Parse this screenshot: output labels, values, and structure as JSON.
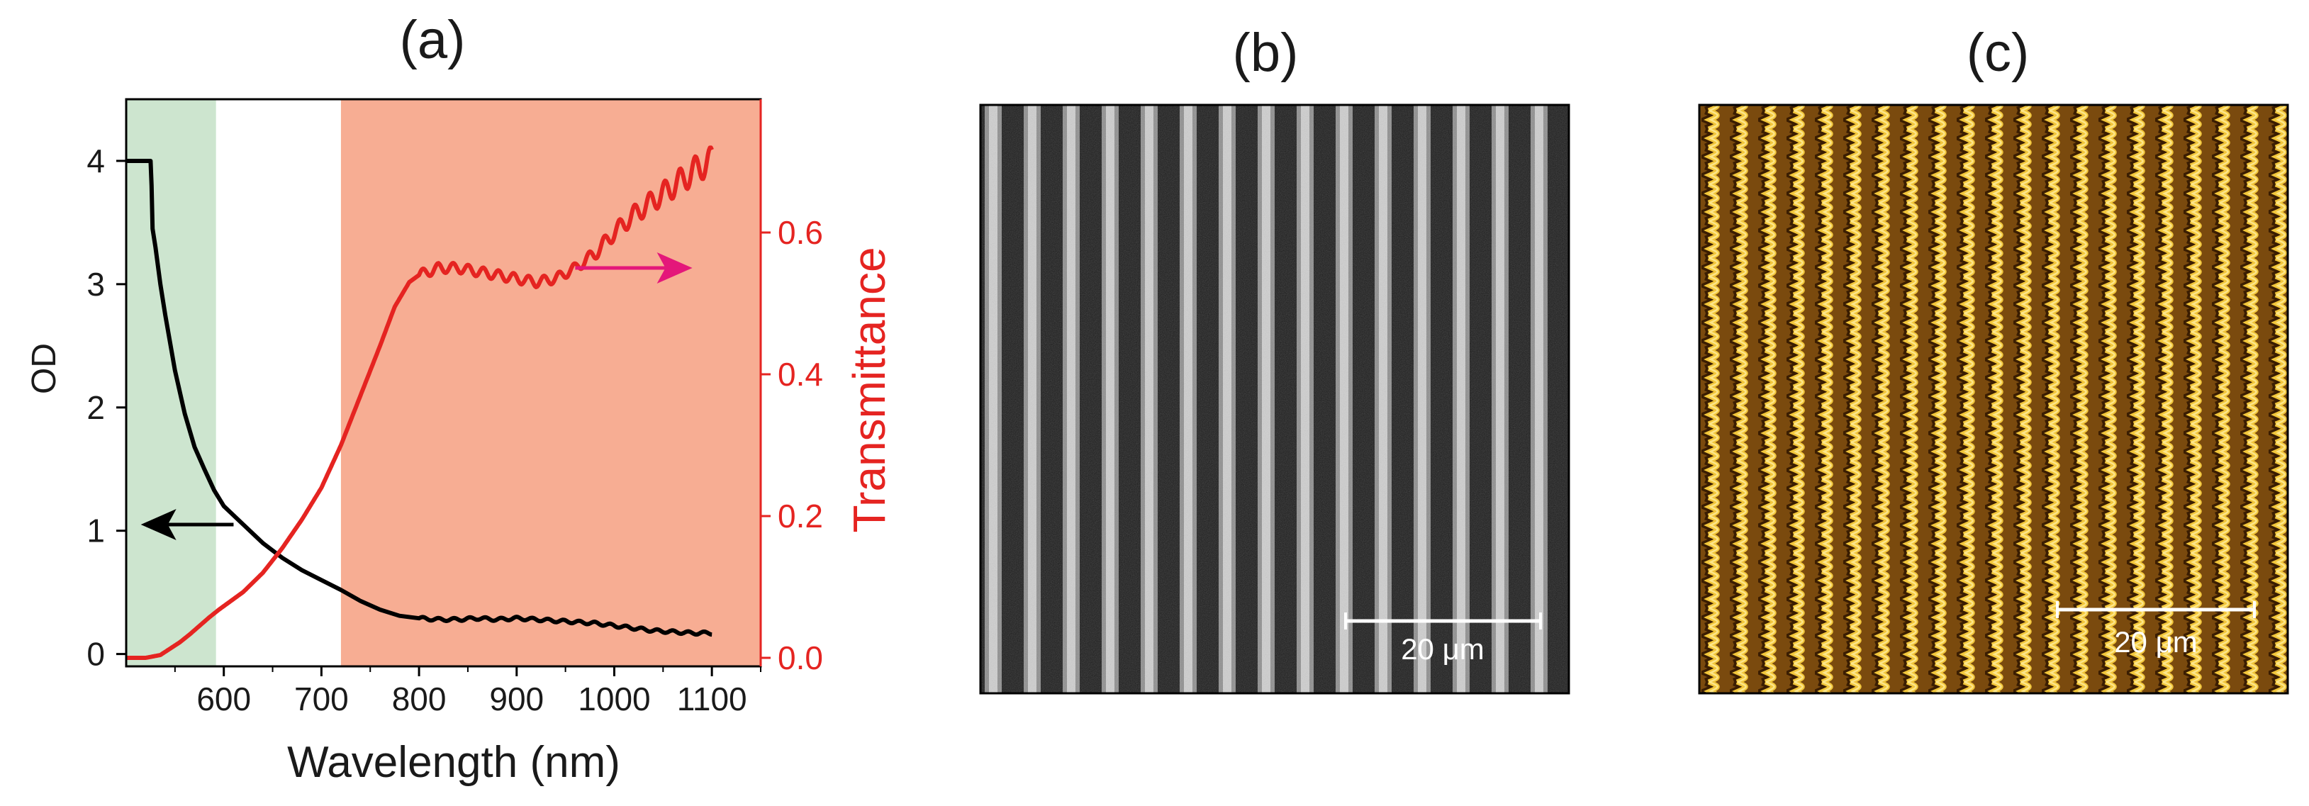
{
  "panels": {
    "a": {
      "label": "(a)"
    },
    "b": {
      "label": "(b)",
      "scale_bar": "20 μm"
    },
    "c": {
      "label": "(c)",
      "scale_bar": "20 μm"
    }
  },
  "chart_data": {
    "type": "line",
    "xlabel": "Wavelength (nm)",
    "ylabel": "OD",
    "y2label": "Transmittance",
    "xlim": [
      500,
      1150
    ],
    "ylim": [
      -0.1,
      4.5
    ],
    "y2lim": [
      -0.012,
      0.788
    ],
    "xticks": [
      "600",
      "700",
      "800",
      "900",
      "1000",
      "1100"
    ],
    "yticks": [
      "0",
      "1",
      "2",
      "3",
      "4"
    ],
    "y2ticks": [
      "0.0",
      "0.2",
      "0.4",
      "0.6"
    ],
    "colors": {
      "od": "#000000",
      "transmittance": "#e52421",
      "arrow_right": "#e4177a",
      "band_green": "#cde5cf",
      "band_salmon": "#f7ad93",
      "y2_axis": "#e52421"
    },
    "shaded_regions": [
      {
        "from": 500,
        "to": 592,
        "color": "#cde5cf"
      },
      {
        "from": 720,
        "to": 1150,
        "color": "#f7ad93"
      }
    ],
    "annotations": [
      {
        "type": "arrow",
        "series": "OD",
        "from": [
          610,
          1.05
        ],
        "to": [
          515,
          1.05
        ],
        "color": "#000000"
      },
      {
        "type": "arrow",
        "series": "Transmittance",
        "from": [
          960,
          0.55
        ],
        "to": [
          1080,
          0.55
        ],
        "color": "#e4177a"
      }
    ],
    "series": [
      {
        "axis": "left",
        "color": "#000000",
        "x": [
          500,
          525,
          526,
          527,
          530,
          535,
          540,
          550,
          560,
          570,
          580,
          590,
          600,
          620,
          640,
          660,
          680,
          700,
          720,
          740,
          760,
          780,
          800,
          820,
          840,
          860,
          880,
          900,
          920,
          940,
          960,
          980,
          1000,
          1020,
          1040,
          1060,
          1080,
          1100
        ],
        "y": [
          4.0,
          4.0,
          3.8,
          3.45,
          3.3,
          3.0,
          2.75,
          2.3,
          1.95,
          1.68,
          1.5,
          1.33,
          1.2,
          1.05,
          0.9,
          0.78,
          0.68,
          0.6,
          0.52,
          0.43,
          0.36,
          0.31,
          0.29,
          0.28,
          0.28,
          0.29,
          0.28,
          0.29,
          0.28,
          0.27,
          0.26,
          0.25,
          0.23,
          0.21,
          0.19,
          0.18,
          0.17,
          0.17
        ]
      },
      {
        "axis": "right",
        "color": "#e52421",
        "x": [
          500,
          520,
          535,
          545,
          555,
          565,
          575,
          585,
          595,
          605,
          620,
          640,
          660,
          680,
          700,
          720,
          740,
          760,
          775,
          790,
          800,
          820,
          840,
          860,
          880,
          900,
          920,
          940,
          960,
          980,
          1000,
          1020,
          1040,
          1060,
          1080,
          1090,
          1100
        ],
        "y": [
          0.0,
          0.0,
          0.004,
          0.013,
          0.022,
          0.033,
          0.045,
          0.057,
          0.068,
          0.078,
          0.093,
          0.12,
          0.155,
          0.195,
          0.24,
          0.3,
          0.37,
          0.44,
          0.495,
          0.53,
          0.54,
          0.55,
          0.55,
          0.545,
          0.54,
          0.535,
          0.53,
          0.535,
          0.55,
          0.57,
          0.6,
          0.625,
          0.645,
          0.665,
          0.685,
          0.695,
          0.7
        ]
      }
    ]
  }
}
